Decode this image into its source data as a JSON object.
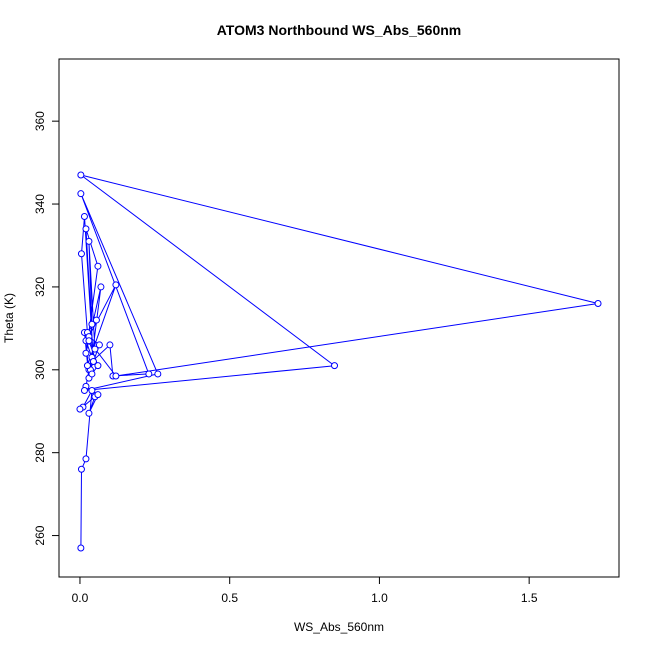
{
  "chart_data": {
    "type": "line",
    "title": "ATOM3 Northbound WS_Abs_560nm",
    "xlabel": "WS_Abs_560nm",
    "ylabel": "Theta (K)",
    "xlim": [
      -0.07,
      1.8
    ],
    "ylim": [
      250,
      375
    ],
    "xticks": [
      0.0,
      0.5,
      1.0,
      1.5
    ],
    "xtick_labels": [
      "0.0",
      "0.5",
      "1.0",
      "1.5"
    ],
    "yticks": [
      260,
      280,
      300,
      320,
      340,
      360
    ],
    "ytick_labels": [
      "260",
      "280",
      "300",
      "320",
      "340",
      "360"
    ],
    "grid": false,
    "markers": "open-circle",
    "series": [
      {
        "color": "#0000ff",
        "points": [
          [
            0.003,
            257
          ],
          [
            0.005,
            276
          ],
          [
            0.02,
            278.5
          ],
          [
            0.04,
            295
          ],
          [
            0.01,
            291
          ],
          [
            0.0,
            290.5
          ],
          [
            0.05,
            293.5
          ],
          [
            0.03,
            289.5
          ],
          [
            0.06,
            294
          ],
          [
            0.02,
            296
          ],
          [
            0.03,
            300
          ],
          [
            0.015,
            309
          ],
          [
            0.03,
            298
          ],
          [
            0.04,
            303
          ],
          [
            0.02,
            307
          ],
          [
            0.05,
            305
          ],
          [
            0.03,
            331
          ],
          [
            0.04,
            311
          ],
          [
            0.055,
            312
          ],
          [
            0.025,
            309
          ],
          [
            0.005,
            328
          ],
          [
            0.015,
            337
          ],
          [
            0.045,
            302
          ],
          [
            0.02,
            334
          ],
          [
            0.06,
            325
          ],
          [
            0.02,
            304
          ],
          [
            0.07,
            320
          ],
          [
            0.035,
            300
          ],
          [
            0.065,
            306
          ],
          [
            0.03,
            308
          ],
          [
            0.12,
            320.5
          ],
          [
            0.025,
            301
          ],
          [
            0.1,
            306
          ],
          [
            0.11,
            298.5
          ],
          [
            0.23,
            299
          ],
          [
            0.003,
            342.5
          ],
          [
            0.26,
            299
          ],
          [
            0.015,
            295
          ],
          [
            0.85,
            301
          ],
          [
            0.003,
            347
          ],
          [
            1.73,
            316
          ],
          [
            0.12,
            298.5
          ],
          [
            0.03,
            307
          ],
          [
            0.06,
            301
          ],
          [
            0.04,
            299
          ]
        ]
      }
    ]
  }
}
